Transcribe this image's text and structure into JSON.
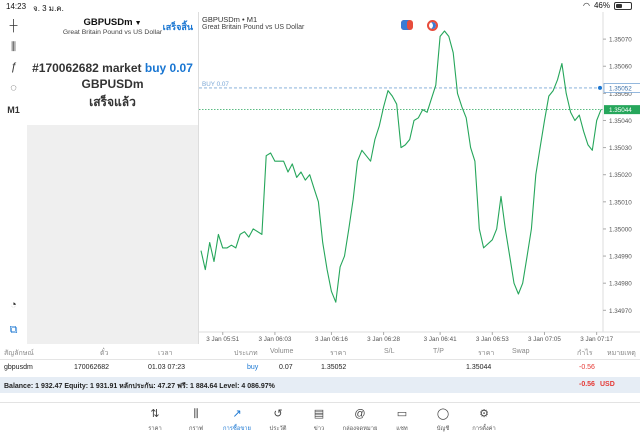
{
  "status_bar": {
    "time": "14:23",
    "date": "จ. 3 ม.ค.",
    "battery": "46%",
    "battery_level": 0.46
  },
  "toolbar": {
    "items": [
      {
        "name": "crosshair-icon",
        "glyph": "┼"
      },
      {
        "name": "indicators-icon",
        "glyph": "⫼"
      },
      {
        "name": "function-icon",
        "glyph": "ƒ"
      },
      {
        "name": "objects-icon",
        "glyph": "◌"
      },
      {
        "name": "timeframe-label",
        "glyph": "M1"
      },
      {
        "name": "speedometer-icon",
        "glyph": "◔"
      },
      {
        "name": "trade-icon",
        "glyph": "⧉"
      }
    ]
  },
  "trade_panel": {
    "symbol": "GBPUSDm",
    "description": "Great Britain Pound vs US Dollar",
    "done_label": "เสร็จสิ้น",
    "order_id": "#170062682 market",
    "order_side": "buy 0.07",
    "order_symbol": "GBPUSDm",
    "order_status": "เสร็จแล้ว"
  },
  "chart": {
    "title": "GBPUSDm • M1",
    "subtitle": "Great Britain Pound vs US Dollar",
    "buy_line_label": "BUY 0.07",
    "price_tags": [
      "1.35052",
      "1.35044"
    ],
    "price_ticks": [
      "1.35070",
      "1.35060",
      "1.35050",
      "1.35040",
      "1.35030",
      "1.35020",
      "1.35010",
      "1.35000",
      "1.34990",
      "1.34980",
      "1.34970"
    ],
    "time_ticks": [
      "3 Jan 05:51",
      "3 Jan 06:03",
      "3 Jan 06:16",
      "3 Jan 06:28",
      "3 Jan 06:41",
      "3 Jan 06:53",
      "3 Jan 07:05",
      "3 Jan 07:17"
    ],
    "line_color": "#26a65b",
    "buy_line_color": "#7aa7d6",
    "ask_line_color": "#26a65b"
  },
  "chart_data": {
    "type": "line",
    "ylim": [
      1.34962,
      1.3508
    ],
    "x": [
      "05:46",
      "05:47",
      "05:48",
      "05:49",
      "05:50",
      "05:51",
      "05:52",
      "05:53",
      "05:54",
      "05:55",
      "05:56",
      "05:57",
      "05:58",
      "06:00",
      "06:01",
      "06:02",
      "06:03",
      "06:04",
      "06:05",
      "06:06",
      "06:07",
      "06:08",
      "06:09",
      "06:10",
      "06:11",
      "06:12",
      "06:13",
      "06:14",
      "06:15",
      "06:16",
      "06:17",
      "06:18",
      "06:19",
      "06:20",
      "06:21",
      "06:22",
      "06:23",
      "06:25",
      "06:26",
      "06:27",
      "06:28",
      "06:29",
      "06:30",
      "06:31",
      "06:32",
      "06:33",
      "06:34",
      "06:35",
      "06:36",
      "06:37",
      "06:38",
      "06:39",
      "06:40",
      "06:41",
      "06:42",
      "06:43",
      "06:44",
      "06:45",
      "06:46",
      "06:47",
      "06:48",
      "06:49",
      "06:50",
      "06:51",
      "06:53",
      "06:54",
      "06:55",
      "06:56",
      "06:57",
      "06:58",
      "06:59",
      "07:00",
      "07:01",
      "07:02",
      "07:03",
      "07:04",
      "07:05",
      "07:06",
      "07:07",
      "07:08",
      "07:09",
      "07:10",
      "07:11",
      "07:12",
      "07:13",
      "07:14",
      "07:15",
      "07:16",
      "07:17",
      "07:18"
    ],
    "series": [
      {
        "values": [
          1.34992,
          1.34985,
          1.34995,
          1.34988,
          1.34998,
          1.34993,
          1.34993,
          1.34994,
          1.34993,
          1.34998,
          1.34999,
          1.34997,
          1.35,
          1.34998,
          1.35027,
          1.35028,
          1.35025,
          1.35025,
          1.35025,
          1.35021,
          1.35024,
          1.35019,
          1.35021,
          1.35018,
          1.3502,
          1.35015,
          1.3501,
          1.34995,
          1.34985,
          1.34977,
          1.34973,
          1.34986,
          1.3499,
          1.35,
          1.35011,
          1.35025,
          1.35029,
          1.35025,
          1.35033,
          1.35038,
          1.35045,
          1.35051,
          1.35049,
          1.35046,
          1.3503,
          1.35031,
          1.35033,
          1.3504,
          1.35041,
          1.35044,
          1.35043,
          1.35048,
          1.35053,
          1.35071,
          1.35073,
          1.35071,
          1.35065,
          1.3505,
          1.35045,
          1.35041,
          1.3503,
          1.35025,
          1.35,
          1.34993,
          1.34996,
          1.35,
          1.35012,
          1.35,
          1.3499,
          1.3498,
          1.34976,
          1.3498,
          1.3499,
          1.35,
          1.3502,
          1.3503,
          1.3504,
          1.35049,
          1.35051,
          1.35055,
          1.35061,
          1.3505,
          1.35043,
          1.3504,
          1.35042,
          1.35036,
          1.35031,
          1.35029,
          1.3504,
          1.35044
        ]
      }
    ],
    "reference_lines": [
      {
        "label": "BUY 0.07",
        "value": 1.35052
      },
      {
        "label": "ask",
        "value": 1.35044
      }
    ]
  },
  "table": {
    "headers": [
      "สัญลักษณ์",
      "ตั๋ว",
      "เวลา",
      "ประเภท",
      "Volume",
      "ราคา",
      "S/L",
      "T/P",
      "ราคา",
      "Swap",
      "กำไร",
      "หมายเหตุ"
    ],
    "row": {
      "symbol": "gbpusdm",
      "ticket": "170062682",
      "time": "01.03 07:23",
      "type": "buy",
      "volume": "0.07",
      "open_price": "1.35052",
      "sl": "",
      "tp": "",
      "price": "1.35044",
      "swap": "",
      "profit": "-0.56",
      "comment": ""
    },
    "balance_text": "Balance: 1 932.47 Equity: 1 931.91 หลักประกัน: 47.27 ฟรี: 1 884.64 Level: 4 086.97%",
    "total_profit": "-0.56",
    "currency": "USD"
  },
  "nav": {
    "items": [
      {
        "name": "nav-quotes",
        "label": "ราคา",
        "glyph": "⇅",
        "icon": "quotes-icon",
        "active": false
      },
      {
        "name": "nav-chart",
        "label": "กราฟ",
        "glyph": "⫼",
        "icon": "chart-icon",
        "active": false
      },
      {
        "name": "nav-trade",
        "label": "การซื้อขาย",
        "glyph": "↗",
        "icon": "trade-icon",
        "active": true
      },
      {
        "name": "nav-history",
        "label": "ประวัติ",
        "glyph": "↺",
        "icon": "history-icon",
        "active": false
      },
      {
        "name": "nav-news",
        "label": "ข่าว",
        "glyph": "▤",
        "icon": "news-icon",
        "active": false
      },
      {
        "name": "nav-mailbox",
        "label": "กล่องจดหมาย",
        "glyph": "@",
        "icon": "mailbox-icon",
        "active": false
      },
      {
        "name": "nav-chat",
        "label": "แชท",
        "glyph": "▭",
        "icon": "chat-icon",
        "active": false
      },
      {
        "name": "nav-accounts",
        "label": "บัญชี",
        "glyph": "◯",
        "icon": "accounts-icon",
        "active": false
      },
      {
        "name": "nav-settings",
        "label": "การตั้งค่า",
        "glyph": "⚙",
        "icon": "settings-icon",
        "active": false
      }
    ]
  }
}
